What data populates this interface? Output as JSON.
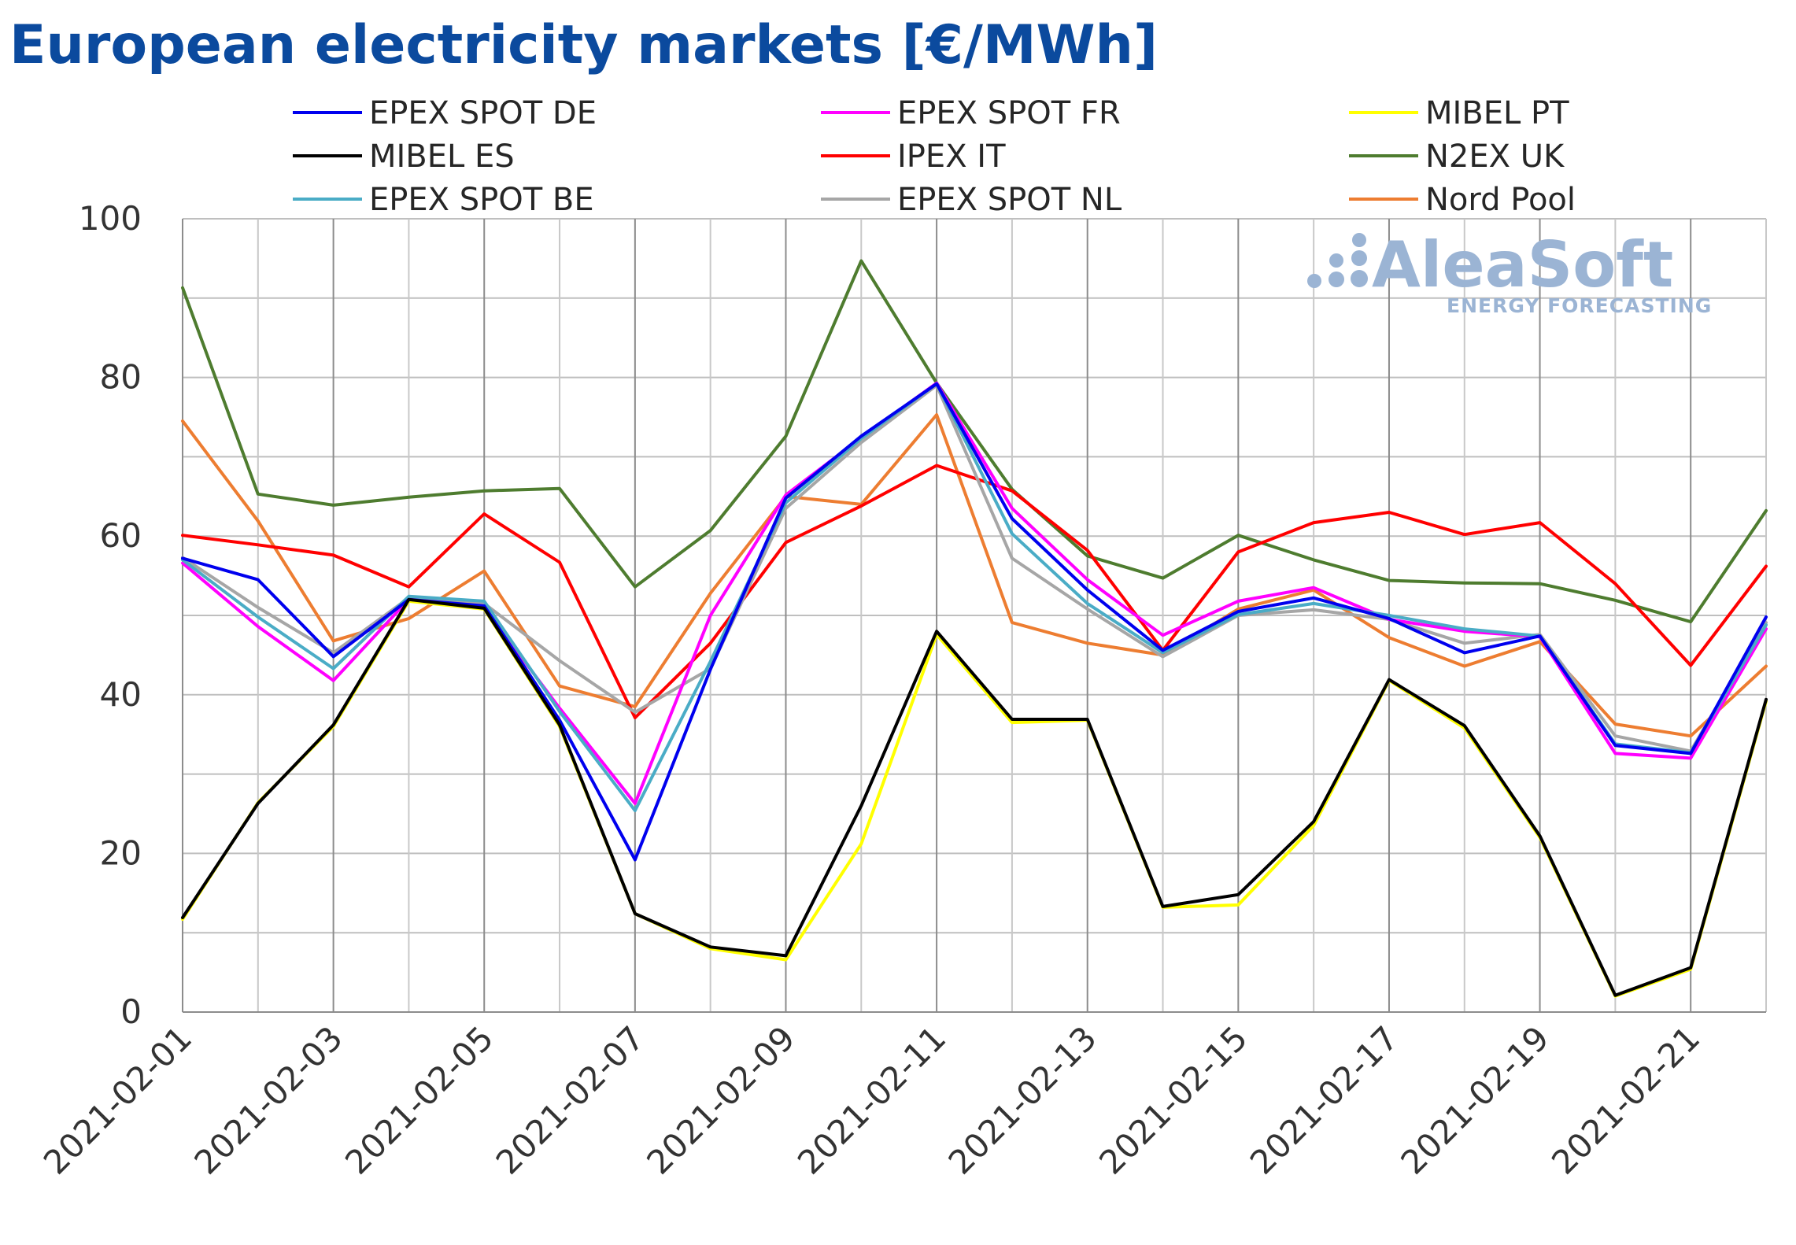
{
  "chart_data": {
    "type": "line",
    "title": "European electricity markets [€/MWh]",
    "xlabel": "",
    "ylabel": "",
    "ylim": [
      0,
      100
    ],
    "yticks": [
      0,
      20,
      40,
      60,
      80,
      100
    ],
    "grid": true,
    "legend_position": "top",
    "x": [
      "2021-02-01",
      "2021-02-02",
      "2021-02-03",
      "2021-02-04",
      "2021-02-05",
      "2021-02-06",
      "2021-02-07",
      "2021-02-08",
      "2021-02-09",
      "2021-02-10",
      "2021-02-11",
      "2021-02-12",
      "2021-02-13",
      "2021-02-14",
      "2021-02-15",
      "2021-02-16",
      "2021-02-17",
      "2021-02-18",
      "2021-02-19",
      "2021-02-20",
      "2021-02-21",
      "2021-02-22"
    ],
    "xtick_labels": [
      "2021-02-01",
      "2021-02-03",
      "2021-02-05",
      "2021-02-07",
      "2021-02-09",
      "2021-02-11",
      "2021-02-13",
      "2021-02-15",
      "2021-02-17",
      "2021-02-19",
      "2021-02-21"
    ],
    "series": [
      {
        "name": "EPEX SPOT DE",
        "color": "#0000ee",
        "values": [
          57.2,
          54.5,
          44.8,
          52.0,
          51.2,
          36.8,
          19.2,
          43.2,
          64.8,
          72.6,
          79.2,
          62.2,
          53.2,
          45.6,
          50.5,
          52.2,
          49.6,
          45.3,
          47.4,
          33.6,
          32.6,
          49.8
        ]
      },
      {
        "name": "EPEX SPOT FR",
        "color": "#ff00ff",
        "values": [
          56.6,
          48.6,
          41.8,
          52.0,
          51.0,
          38.3,
          26.3,
          50.0,
          65.2,
          72.4,
          79.3,
          63.5,
          54.5,
          47.5,
          51.8,
          53.5,
          49.5,
          48.0,
          47.3,
          32.6,
          32.0,
          48.3
        ]
      },
      {
        "name": "MIBEL PT",
        "color": "#ffff00",
        "values": [
          11.7,
          26.4,
          36.0,
          51.8,
          50.8,
          36.0,
          12.4,
          8.0,
          6.6,
          21.2,
          47.6,
          36.5,
          36.8,
          13.2,
          13.5,
          23.5,
          41.8,
          35.8,
          22.0,
          2.0,
          5.4,
          39.2
        ]
      },
      {
        "name": "MIBEL ES",
        "color": "#000000",
        "values": [
          11.9,
          26.3,
          36.2,
          52.0,
          50.9,
          36.2,
          12.4,
          8.2,
          7.1,
          26.0,
          48.0,
          36.9,
          36.9,
          13.3,
          14.8,
          24.0,
          41.9,
          36.1,
          22.2,
          2.1,
          5.6,
          39.4
        ]
      },
      {
        "name": "IPEX IT",
        "color": "#ff0000",
        "values": [
          60.1,
          58.9,
          57.6,
          53.6,
          62.8,
          56.7,
          37.1,
          46.5,
          59.2,
          63.8,
          68.9,
          65.7,
          58.2,
          45.6,
          58.0,
          61.7,
          63.0,
          60.2,
          61.7,
          54.0,
          43.7,
          56.2
        ]
      },
      {
        "name": "N2EX UK",
        "color": "#4e7c2f",
        "values": [
          91.3,
          65.3,
          63.9,
          64.9,
          65.7,
          66.0,
          53.6,
          60.7,
          72.6,
          94.7,
          79.3,
          65.9,
          57.5,
          54.7,
          60.1,
          57.0,
          54.4,
          54.1,
          54.0,
          51.9,
          49.2,
          63.2
        ]
      },
      {
        "name": "EPEX SPOT BE",
        "color": "#4aacc6",
        "values": [
          57.0,
          49.8,
          43.3,
          52.4,
          51.8,
          37.9,
          25.4,
          44.2,
          64.2,
          72.3,
          79.2,
          60.3,
          51.5,
          45.3,
          50.1,
          51.5,
          50.0,
          48.3,
          47.4,
          33.8,
          32.7,
          48.8
        ]
      },
      {
        "name": "EPEX SPOT NL",
        "color": "#a6a6a6",
        "values": [
          57.3,
          51.0,
          45.3,
          52.2,
          51.5,
          44.3,
          37.8,
          43.3,
          63.5,
          71.8,
          79.0,
          57.2,
          50.8,
          44.8,
          50.0,
          50.7,
          49.5,
          46.5,
          47.6,
          34.8,
          32.9,
          49.1
        ]
      },
      {
        "name": "Nord Pool",
        "color": "#ed7d31",
        "values": [
          74.5,
          61.9,
          46.8,
          49.6,
          55.6,
          41.1,
          38.5,
          52.8,
          65.0,
          64.0,
          75.3,
          49.1,
          46.5,
          45.0,
          50.8,
          53.2,
          47.2,
          43.6,
          46.7,
          36.3,
          34.8,
          43.6
        ]
      }
    ]
  },
  "watermark": {
    "brand": "AleaSoft",
    "tagline": "ENERGY FORECASTING",
    "color": "#9bb4d4"
  }
}
